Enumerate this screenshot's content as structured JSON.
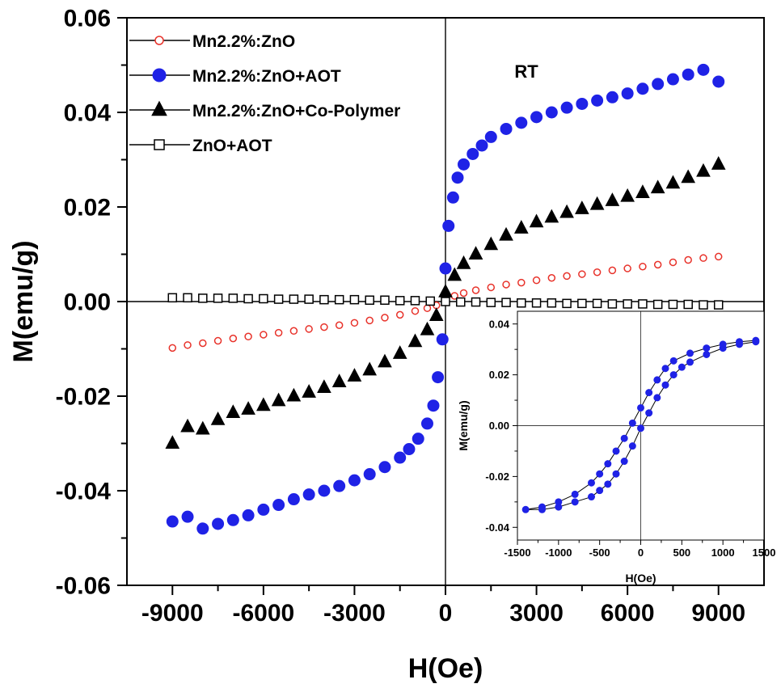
{
  "colors": {
    "red": "#e8322a",
    "blue": "#1f22e6",
    "black": "#000000",
    "white": "#ffffff"
  },
  "chart_data": [
    {
      "type": "scatter",
      "title": "",
      "xlabel": "H(Oe)",
      "ylabel": "M(emu/g)",
      "annotation": "RT",
      "xlim": [
        -10500,
        10500
      ],
      "ylim": [
        -0.06,
        0.06
      ],
      "xticks": [
        "-9000",
        "-6000",
        "-3000",
        "0",
        "3000",
        "6000",
        "9000"
      ],
      "yticks": [
        "-0.06",
        "-0.04",
        "-0.02",
        "0.00",
        "0.02",
        "0.04",
        "0.06"
      ],
      "grid": false,
      "legend_position": "top-left",
      "series": [
        {
          "name": "Mn2.2%:ZnO",
          "marker": "circle-open",
          "color": "#e8322a",
          "x": [
            -9000,
            -8500,
            -8000,
            -7500,
            -7000,
            -6500,
            -6000,
            -5500,
            -5000,
            -4500,
            -4000,
            -3500,
            -3000,
            -2500,
            -2000,
            -1500,
            -1000,
            -600,
            -300,
            0,
            300,
            600,
            1000,
            1500,
            2000,
            2500,
            3000,
            3500,
            4000,
            4500,
            5000,
            5500,
            6000,
            6500,
            7000,
            7500,
            8000,
            8500,
            9000
          ],
          "y": [
            -0.0098,
            -0.0092,
            -0.0088,
            -0.0083,
            -0.0078,
            -0.0074,
            -0.007,
            -0.0066,
            -0.0062,
            -0.0058,
            -0.0054,
            -0.005,
            -0.0045,
            -0.004,
            -0.0034,
            -0.0028,
            -0.002,
            -0.0014,
            -0.0008,
            0.0,
            0.0012,
            0.0018,
            0.0024,
            0.003,
            0.0036,
            0.004,
            0.0045,
            0.005,
            0.0054,
            0.0058,
            0.0062,
            0.0066,
            0.007,
            0.0074,
            0.0078,
            0.0083,
            0.0088,
            0.0092,
            0.0095
          ]
        },
        {
          "name": "Mn2.2%:ZnO+AOT",
          "marker": "circle-filled",
          "color": "#1f22e6",
          "x": [
            -9000,
            -8500,
            -8000,
            -7500,
            -7000,
            -6500,
            -6000,
            -5500,
            -5000,
            -4500,
            -4000,
            -3500,
            -3000,
            -2500,
            -2000,
            -1500,
            -1200,
            -900,
            -600,
            -400,
            -250,
            -100,
            0,
            100,
            250,
            400,
            600,
            900,
            1200,
            1500,
            2000,
            2500,
            3000,
            3500,
            4000,
            4500,
            5000,
            5500,
            6000,
            6500,
            7000,
            7500,
            8000,
            8500,
            9000
          ],
          "y": [
            -0.0465,
            -0.0455,
            -0.048,
            -0.047,
            -0.0462,
            -0.0452,
            -0.044,
            -0.043,
            -0.0418,
            -0.0408,
            -0.04,
            -0.039,
            -0.0378,
            -0.0365,
            -0.035,
            -0.033,
            -0.0312,
            -0.029,
            -0.0258,
            -0.022,
            -0.016,
            -0.008,
            0.007,
            0.016,
            0.022,
            0.0262,
            0.029,
            0.0312,
            0.033,
            0.0348,
            0.0365,
            0.0378,
            0.039,
            0.04,
            0.041,
            0.0418,
            0.0425,
            0.0432,
            0.044,
            0.045,
            0.046,
            0.047,
            0.048,
            0.049,
            0.0465
          ]
        },
        {
          "name": "Mn2.2%:ZnO+Co-Polymer",
          "marker": "triangle-filled",
          "color": "#000000",
          "x": [
            -9000,
            -8500,
            -8000,
            -7500,
            -7000,
            -6500,
            -6000,
            -5500,
            -5000,
            -4500,
            -4000,
            -3500,
            -3000,
            -2500,
            -2000,
            -1500,
            -1000,
            -600,
            -300,
            0,
            300,
            600,
            1000,
            1500,
            2000,
            2500,
            3000,
            3500,
            4000,
            4500,
            5000,
            5500,
            6000,
            6500,
            7000,
            7500,
            8000,
            8500,
            9000
          ],
          "y": [
            -0.03,
            -0.0265,
            -0.027,
            -0.025,
            -0.0235,
            -0.0228,
            -0.022,
            -0.021,
            -0.02,
            -0.0192,
            -0.0182,
            -0.017,
            -0.0158,
            -0.0145,
            -0.0128,
            -0.011,
            -0.0085,
            -0.006,
            -0.003,
            0.002,
            0.0055,
            0.008,
            0.01,
            0.012,
            0.014,
            0.0155,
            0.0168,
            0.0178,
            0.0188,
            0.0196,
            0.0205,
            0.0213,
            0.0222,
            0.023,
            0.024,
            0.025,
            0.0262,
            0.0275,
            0.029
          ]
        },
        {
          "name": "ZnO+AOT",
          "marker": "square-open",
          "color": "#000000",
          "x": [
            -9000,
            -8500,
            -8000,
            -7500,
            -7000,
            -6500,
            -6000,
            -5500,
            -5000,
            -4500,
            -4000,
            -3500,
            -3000,
            -2500,
            -2000,
            -1500,
            -1000,
            -500,
            0,
            500,
            1000,
            1500,
            2000,
            2500,
            3000,
            3500,
            4000,
            4500,
            5000,
            5500,
            6000,
            6500,
            7000,
            7500,
            8000,
            8500,
            9000
          ],
          "y": [
            0.0008,
            0.0008,
            0.0007,
            0.0007,
            0.0007,
            0.0006,
            0.0006,
            0.0005,
            0.0005,
            0.0005,
            0.0004,
            0.0004,
            0.0004,
            0.0003,
            0.0003,
            0.0002,
            0.0002,
            0.0001,
            0.0,
            -0.0001,
            -0.0001,
            -0.0002,
            -0.0002,
            -0.0003,
            -0.0003,
            -0.0003,
            -0.0004,
            -0.0004,
            -0.0004,
            -0.0005,
            -0.0005,
            -0.0005,
            -0.0006,
            -0.0006,
            -0.0006,
            -0.0007,
            -0.0007
          ]
        }
      ]
    },
    {
      "type": "scatter",
      "inset": true,
      "title": "",
      "xlabel": "H(Oe)",
      "ylabel": "M(emu/g)",
      "xlim": [
        -1500,
        1500
      ],
      "ylim": [
        -0.045,
        0.045
      ],
      "xticks": [
        "-1500",
        "-1000",
        "-500",
        "0",
        "500",
        "1000",
        "1500"
      ],
      "yticks": [
        "-0.04",
        "-0.02",
        "0.00",
        "0.02",
        "0.04"
      ],
      "grid": false,
      "series": [
        {
          "name": "",
          "marker": "circle-filled",
          "color": "#1f22e6",
          "x": [
            1400,
            1200,
            1000,
            800,
            600,
            400,
            300,
            200,
            100,
            0,
            -100,
            -200,
            -300,
            -400,
            -500,
            -600,
            -800,
            -1000,
            -1200,
            -1400,
            -1200,
            -1000,
            -800,
            -600,
            -500,
            -400,
            -300,
            -200,
            -100,
            0,
            100,
            200,
            300,
            400,
            500,
            600,
            800,
            1000,
            1200,
            1400
          ],
          "y": [
            0.0335,
            0.033,
            0.032,
            0.0305,
            0.0285,
            0.0255,
            0.0225,
            0.018,
            0.013,
            0.007,
            0.001,
            -0.005,
            -0.01,
            -0.015,
            -0.019,
            -0.0225,
            -0.027,
            -0.03,
            -0.032,
            -0.033,
            -0.033,
            -0.032,
            -0.03,
            -0.028,
            -0.0255,
            -0.023,
            -0.019,
            -0.014,
            -0.008,
            -0.001,
            0.005,
            0.011,
            0.016,
            0.02,
            0.023,
            0.025,
            0.028,
            0.0305,
            0.032,
            0.033
          ]
        }
      ]
    }
  ]
}
